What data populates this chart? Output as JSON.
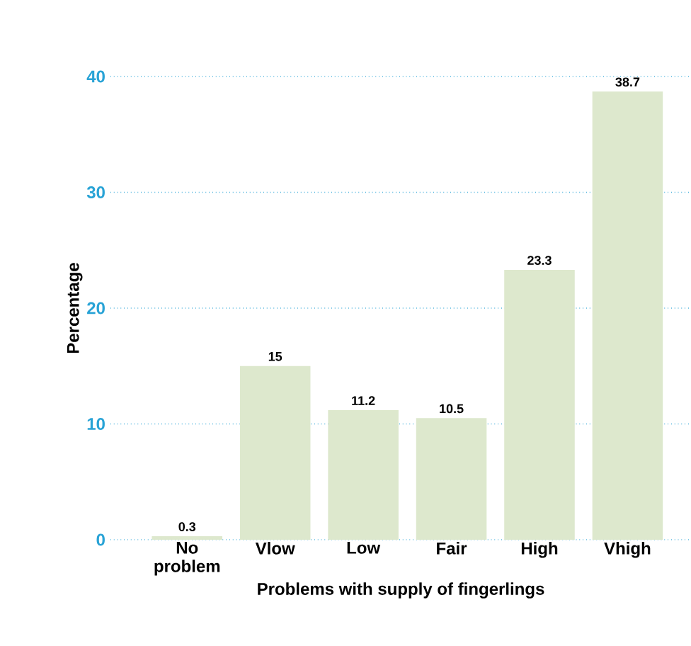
{
  "chart_data": {
    "type": "bar",
    "xlabel": "Problems with supply of fingerlings",
    "ylabel": "Percentage",
    "categories": [
      "No problem",
      "Vlow",
      "Low",
      "Fair",
      "High",
      "Vhigh"
    ],
    "values": [
      0.3,
      15,
      11.2,
      10.5,
      23.3,
      38.7
    ],
    "color": "#dde8cd",
    "ylim": [
      0,
      40
    ],
    "yticks": [
      0,
      10,
      20,
      30,
      40
    ],
    "grid": "y",
    "data_labels": true
  }
}
